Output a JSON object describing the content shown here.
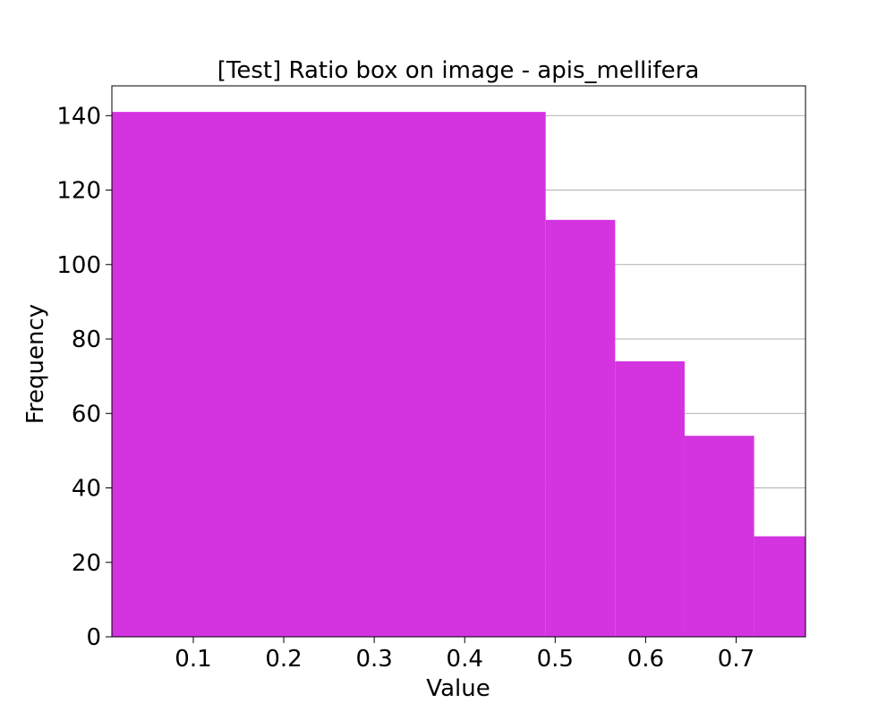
{
  "chart_data": {
    "type": "bar",
    "title": "[Test] Ratio box on image - apis_mellifera",
    "xlabel": "Value",
    "ylabel": "Frequency",
    "bins": [
      {
        "start": 0.01,
        "end": 0.4895,
        "count": 141
      },
      {
        "start": 0.4895,
        "end": 0.5663,
        "count": 112
      },
      {
        "start": 0.5663,
        "end": 0.6431,
        "count": 74
      },
      {
        "start": 0.6431,
        "end": 0.7199,
        "count": 54
      },
      {
        "start": 0.7199,
        "end": 0.7767,
        "count": 27
      }
    ],
    "xlim": [
      0.01,
      0.7767
    ],
    "ylim": [
      0,
      148
    ],
    "x_ticks": [
      0.1,
      0.2,
      0.3,
      0.4,
      0.5,
      0.6,
      0.7
    ],
    "y_ticks": [
      0,
      20,
      40,
      60,
      80,
      100,
      120,
      140
    ],
    "grid": "horizontal",
    "legend": "none",
    "colors": {
      "bar": "#d433e0",
      "grid": "#b0b0b0",
      "axis": "#000000"
    }
  }
}
